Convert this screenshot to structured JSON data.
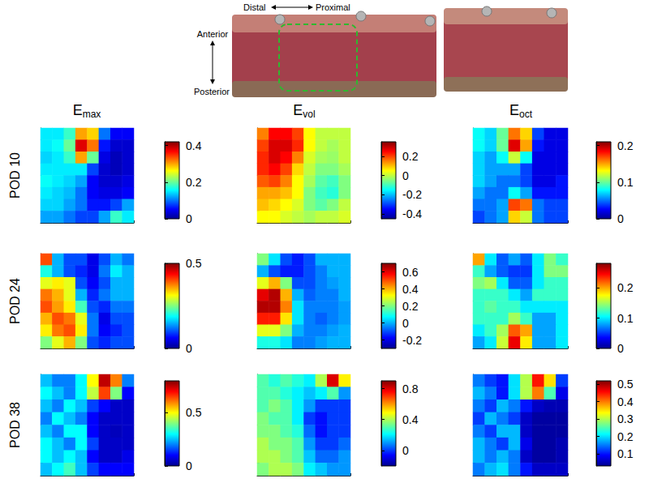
{
  "photo_labels": {
    "left": "Distal",
    "right": "Proximal",
    "top": "Anterior",
    "bottom": "Posterior"
  },
  "column_titles": [
    {
      "base": "E",
      "subscript": "max"
    },
    {
      "base": "E",
      "subscript": "vol"
    },
    {
      "base": "E",
      "subscript": "oct"
    }
  ],
  "row_labels": [
    "POD 10",
    "POD 24",
    "POD 38"
  ],
  "chart_data": [
    {
      "type": "heatmap",
      "tick_labels": false,
      "colorbar": {
        "range": [
          0,
          0.42
        ],
        "ticks": [
          0,
          0.2,
          0.4
        ]
      },
      "cells": [
        [
          0.15,
          0.15,
          0.18,
          0.3,
          0.28,
          0.1,
          0.05,
          0.05
        ],
        [
          0.15,
          0.16,
          0.2,
          0.38,
          0.32,
          0.06,
          0.03,
          0.03
        ],
        [
          0.14,
          0.15,
          0.18,
          0.3,
          0.2,
          0.04,
          0.02,
          0.03
        ],
        [
          0.15,
          0.15,
          0.15,
          0.15,
          0.08,
          0.03,
          0.02,
          0.03
        ],
        [
          0.16,
          0.15,
          0.14,
          0.12,
          0.05,
          0.03,
          0.03,
          0.04
        ],
        [
          0.15,
          0.14,
          0.13,
          0.1,
          0.05,
          0.04,
          0.04,
          0.05
        ],
        [
          0.14,
          0.14,
          0.12,
          0.1,
          0.06,
          0.06,
          0.08,
          0.12
        ],
        [
          0.12,
          0.12,
          0.1,
          0.08,
          0.08,
          0.12,
          0.18,
          0.15
        ]
      ]
    },
    {
      "type": "heatmap",
      "tick_labels": false,
      "colorbar": {
        "range": [
          -0.45,
          0.35
        ],
        "ticks": [
          -0.4,
          -0.2,
          0,
          0.2
        ]
      },
      "cells": [
        [
          0.15,
          0.25,
          0.25,
          0.2,
          0.05,
          0.0,
          0.0,
          0.0
        ],
        [
          0.2,
          0.28,
          0.28,
          0.22,
          0.05,
          0.0,
          -0.02,
          0.0
        ],
        [
          0.22,
          0.28,
          0.25,
          0.15,
          0.02,
          -0.02,
          -0.03,
          0.0
        ],
        [
          0.22,
          0.25,
          0.2,
          0.08,
          0.0,
          -0.05,
          -0.05,
          -0.02
        ],
        [
          0.18,
          0.2,
          0.15,
          0.05,
          -0.02,
          -0.08,
          -0.1,
          -0.05
        ],
        [
          0.12,
          0.12,
          0.1,
          0.05,
          -0.05,
          -0.1,
          -0.12,
          -0.05
        ],
        [
          0.1,
          0.08,
          0.05,
          0.02,
          -0.05,
          -0.08,
          -0.05,
          0.0
        ],
        [
          0.05,
          0.05,
          0.02,
          0.0,
          -0.02,
          0.0,
          0.0,
          0.02
        ]
      ]
    },
    {
      "type": "heatmap",
      "tick_labels": false,
      "colorbar": {
        "range": [
          0,
          0.21
        ],
        "ticks": [
          0,
          0.1,
          0.2
        ]
      },
      "cells": [
        [
          0.08,
          0.07,
          0.1,
          0.16,
          0.14,
          0.04,
          0.02,
          0.02
        ],
        [
          0.08,
          0.07,
          0.1,
          0.19,
          0.15,
          0.03,
          0.02,
          0.02
        ],
        [
          0.07,
          0.06,
          0.08,
          0.12,
          0.08,
          0.02,
          0.02,
          0.02
        ],
        [
          0.07,
          0.06,
          0.06,
          0.06,
          0.04,
          0.02,
          0.02,
          0.02
        ],
        [
          0.07,
          0.06,
          0.05,
          0.05,
          0.04,
          0.02,
          0.02,
          0.03
        ],
        [
          0.06,
          0.05,
          0.05,
          0.08,
          0.06,
          0.03,
          0.03,
          0.03
        ],
        [
          0.05,
          0.05,
          0.06,
          0.17,
          0.16,
          0.05,
          0.04,
          0.04
        ],
        [
          0.04,
          0.05,
          0.06,
          0.14,
          0.12,
          0.05,
          0.04,
          0.04
        ]
      ]
    },
    {
      "type": "heatmap",
      "tick_labels": false,
      "colorbar": {
        "range": [
          0,
          0.5
        ],
        "ticks": [
          0,
          0.5
        ]
      },
      "cells": [
        [
          0.4,
          0.15,
          0.1,
          0.1,
          0.05,
          0.1,
          0.15,
          0.12
        ],
        [
          0.2,
          0.15,
          0.1,
          0.08,
          0.05,
          0.12,
          0.18,
          0.15
        ],
        [
          0.3,
          0.32,
          0.3,
          0.1,
          0.06,
          0.1,
          0.15,
          0.15
        ],
        [
          0.38,
          0.35,
          0.3,
          0.15,
          0.08,
          0.12,
          0.15,
          0.15
        ],
        [
          0.4,
          0.36,
          0.32,
          0.22,
          0.1,
          0.08,
          0.12,
          0.12
        ],
        [
          0.35,
          0.4,
          0.38,
          0.3,
          0.12,
          0.05,
          0.1,
          0.1
        ],
        [
          0.32,
          0.38,
          0.4,
          0.32,
          0.12,
          0.06,
          0.08,
          0.1
        ],
        [
          0.25,
          0.3,
          0.35,
          0.25,
          0.1,
          0.08,
          0.1,
          0.1
        ]
      ]
    },
    {
      "type": "heatmap",
      "tick_labels": false,
      "colorbar": {
        "range": [
          -0.3,
          0.7
        ],
        "ticks": [
          -0.2,
          0,
          0.2,
          0.4,
          0.6
        ]
      },
      "cells": [
        [
          0.2,
          0.05,
          -0.1,
          -0.15,
          -0.1,
          0.0,
          0.0,
          0.0
        ],
        [
          0.0,
          -0.1,
          -0.15,
          -0.15,
          -0.1,
          -0.05,
          0.0,
          0.0
        ],
        [
          0.3,
          0.4,
          0.2,
          -0.1,
          -0.1,
          -0.05,
          -0.02,
          0.0
        ],
        [
          0.6,
          0.65,
          0.4,
          0.0,
          -0.08,
          -0.05,
          -0.05,
          0.0
        ],
        [
          0.65,
          0.65,
          0.45,
          0.05,
          -0.05,
          -0.05,
          -0.05,
          -0.02
        ],
        [
          0.55,
          0.55,
          0.35,
          0.05,
          -0.05,
          -0.08,
          -0.05,
          -0.02
        ],
        [
          0.3,
          0.3,
          0.2,
          0.0,
          -0.05,
          -0.05,
          -0.02,
          0.0
        ],
        [
          0.1,
          0.1,
          0.05,
          -0.05,
          -0.05,
          -0.02,
          0.0,
          0.0
        ]
      ]
    },
    {
      "type": "heatmap",
      "tick_labels": false,
      "colorbar": {
        "range": [
          0,
          0.28
        ],
        "ticks": [
          0,
          0.1,
          0.2
        ]
      },
      "cells": [
        [
          0.2,
          0.1,
          0.06,
          0.08,
          0.06,
          0.1,
          0.14,
          0.12
        ],
        [
          0.12,
          0.08,
          0.06,
          0.05,
          0.05,
          0.1,
          0.14,
          0.14
        ],
        [
          0.14,
          0.15,
          0.1,
          0.06,
          0.06,
          0.1,
          0.12,
          0.12
        ],
        [
          0.12,
          0.12,
          0.12,
          0.1,
          0.08,
          0.12,
          0.12,
          0.12
        ],
        [
          0.12,
          0.13,
          0.12,
          0.12,
          0.1,
          0.1,
          0.1,
          0.1
        ],
        [
          0.12,
          0.12,
          0.12,
          0.15,
          0.12,
          0.08,
          0.08,
          0.1
        ],
        [
          0.1,
          0.12,
          0.15,
          0.22,
          0.2,
          0.08,
          0.08,
          0.1
        ],
        [
          0.08,
          0.1,
          0.16,
          0.25,
          0.18,
          0.08,
          0.08,
          0.1
        ]
      ]
    },
    {
      "type": "heatmap",
      "tick_labels": false,
      "colorbar": {
        "range": [
          0,
          0.8
        ],
        "ticks": [
          0,
          0.5
        ]
      },
      "cells": [
        [
          0.25,
          0.2,
          0.2,
          0.3,
          0.5,
          0.75,
          0.6,
          0.2
        ],
        [
          0.3,
          0.25,
          0.2,
          0.3,
          0.45,
          0.65,
          0.4,
          0.1
        ],
        [
          0.25,
          0.2,
          0.3,
          0.25,
          0.15,
          0.1,
          0.05,
          0.05
        ],
        [
          0.2,
          0.3,
          0.25,
          0.2,
          0.1,
          0.05,
          0.05,
          0.05
        ],
        [
          0.25,
          0.2,
          0.3,
          0.3,
          0.1,
          0.05,
          0.04,
          0.05
        ],
        [
          0.3,
          0.25,
          0.2,
          0.3,
          0.15,
          0.05,
          0.05,
          0.05
        ],
        [
          0.3,
          0.25,
          0.3,
          0.25,
          0.1,
          0.05,
          0.05,
          0.08
        ],
        [
          0.25,
          0.3,
          0.35,
          0.25,
          0.15,
          0.1,
          0.1,
          0.1
        ]
      ]
    },
    {
      "type": "heatmap",
      "tick_labels": false,
      "colorbar": {
        "range": [
          -0.2,
          0.9
        ],
        "ticks": [
          0,
          0.4,
          0.8
        ]
      },
      "cells": [
        [
          0.3,
          0.25,
          0.3,
          0.25,
          0.2,
          0.4,
          0.8,
          0.5
        ],
        [
          0.3,
          0.3,
          0.25,
          0.2,
          0.15,
          0.2,
          0.3,
          0.1
        ],
        [
          0.3,
          0.35,
          0.3,
          0.2,
          0.1,
          0.0,
          0.0,
          0.0
        ],
        [
          0.35,
          0.3,
          0.3,
          0.2,
          0.0,
          -0.05,
          0.0,
          0.0
        ],
        [
          0.35,
          0.35,
          0.3,
          0.25,
          0.05,
          -0.05,
          0.0,
          0.0
        ],
        [
          0.4,
          0.35,
          0.35,
          0.3,
          0.1,
          0.0,
          0.0,
          0.05
        ],
        [
          0.4,
          0.4,
          0.35,
          0.3,
          0.15,
          0.05,
          0.05,
          0.1
        ],
        [
          0.35,
          0.4,
          0.4,
          0.35,
          0.2,
          0.15,
          0.1,
          0.1
        ]
      ]
    },
    {
      "type": "heatmap",
      "tick_labels": false,
      "colorbar": {
        "range": [
          0.03,
          0.52
        ],
        "ticks": [
          0.1,
          0.2,
          0.3,
          0.4,
          0.5
        ]
      },
      "cells": [
        [
          0.15,
          0.12,
          0.1,
          0.2,
          0.3,
          0.45,
          0.35,
          0.12
        ],
        [
          0.18,
          0.15,
          0.1,
          0.2,
          0.3,
          0.4,
          0.25,
          0.08
        ],
        [
          0.15,
          0.12,
          0.18,
          0.15,
          0.1,
          0.06,
          0.05,
          0.05
        ],
        [
          0.12,
          0.18,
          0.15,
          0.12,
          0.06,
          0.04,
          0.04,
          0.04
        ],
        [
          0.15,
          0.12,
          0.18,
          0.18,
          0.06,
          0.04,
          0.04,
          0.04
        ],
        [
          0.18,
          0.15,
          0.12,
          0.18,
          0.08,
          0.04,
          0.04,
          0.05
        ],
        [
          0.18,
          0.15,
          0.18,
          0.15,
          0.06,
          0.04,
          0.04,
          0.05
        ],
        [
          0.15,
          0.18,
          0.2,
          0.15,
          0.1,
          0.06,
          0.06,
          0.06
        ]
      ]
    }
  ]
}
